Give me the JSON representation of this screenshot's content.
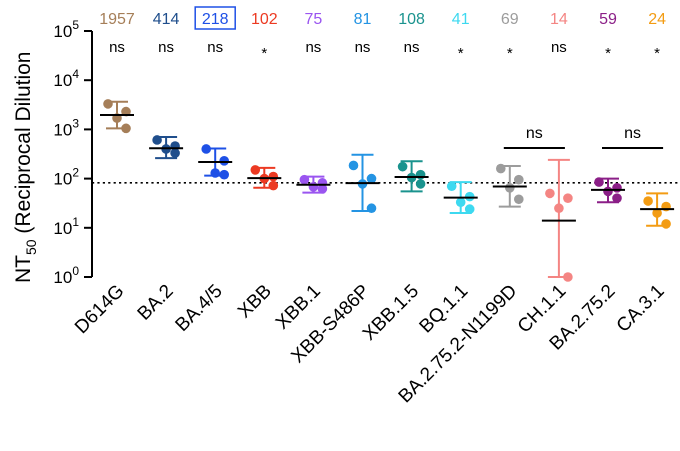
{
  "chart_data": {
    "type": "scatter",
    "ylabel": "NT",
    "ylabel_sub": "50",
    "ylabel_suffix": " (Reciprocal Dilution",
    "yscale": "log",
    "ylim": [
      1,
      100000
    ],
    "yticks": [
      {
        "value": 1,
        "base": "10",
        "exp": "0"
      },
      {
        "value": 10,
        "base": "10",
        "exp": "1"
      },
      {
        "value": 100,
        "base": "10",
        "exp": "2"
      },
      {
        "value": 1000,
        "base": "10",
        "exp": "3"
      },
      {
        "value": 10000,
        "base": "10",
        "exp": "4"
      },
      {
        "value": 100000,
        "base": "10",
        "exp": "5"
      }
    ],
    "reference_line": 82,
    "groups": [
      {
        "name": "D614G",
        "color": "#a57e58",
        "gmt": "1957",
        "boxed": false,
        "sig": "ns",
        "median": 1957,
        "err": [
          1050,
          3650
        ],
        "points": [
          3300,
          2300,
          1700,
          1050
        ]
      },
      {
        "name": "BA.2",
        "color": "#1f4e8c",
        "gmt": "414",
        "boxed": false,
        "sig": "ns",
        "median": 414,
        "err": [
          260,
          700
        ],
        "points": [
          610,
          460,
          400,
          330
        ]
      },
      {
        "name": "BA.4/5",
        "color": "#1e50e6",
        "gmt": "218",
        "boxed": true,
        "sig": "ns",
        "median": 218,
        "err": [
          115,
          410
        ],
        "points": [
          400,
          230,
          130,
          120
        ]
      },
      {
        "name": "XBB",
        "color": "#ec3a22",
        "gmt": "102",
        "boxed": false,
        "sig": "*",
        "median": 102,
        "err": [
          65,
          165
        ],
        "points": [
          150,
          110,
          100,
          72
        ]
      },
      {
        "name": "XBB.1",
        "color": "#9a55f0",
        "gmt": "75",
        "boxed": false,
        "sig": "ns",
        "median": 75,
        "err": [
          52,
          110
        ],
        "points": [
          95,
          82,
          68,
          62
        ]
      },
      {
        "name": "XBB-S486P",
        "color": "#2494e3",
        "gmt": "81",
        "boxed": false,
        "sig": "ns",
        "median": 81,
        "err": [
          22,
          305
        ],
        "points": [
          185,
          100,
          78,
          25
        ]
      },
      {
        "name": "XBB.1.5",
        "color": "#1a938e",
        "gmt": "108",
        "boxed": false,
        "sig": "ns",
        "median": 108,
        "err": [
          55,
          225
        ],
        "points": [
          175,
          120,
          105,
          78
        ]
      },
      {
        "name": "BQ.1.1",
        "color": "#3dd9f0",
        "gmt": "41",
        "boxed": false,
        "sig": "*",
        "median": 41,
        "err": [
          20,
          85
        ],
        "points": [
          70,
          43,
          33,
          24
        ]
      },
      {
        "name": "BA.2.75.2-N1199D",
        "color": "#9c9c9c",
        "gmt": "69",
        "boxed": false,
        "sig": "*",
        "median": 69,
        "err": [
          27,
          180
        ],
        "points": [
          160,
          95,
          65,
          38
        ]
      },
      {
        "name": "CH.1.1",
        "color": "#f48583",
        "gmt": "14",
        "boxed": false,
        "sig": "ns",
        "median": 14,
        "err": [
          1,
          240
        ],
        "points": [
          50,
          40,
          25,
          1
        ]
      },
      {
        "name": "BA.2.75.2",
        "color": "#8b1f87",
        "gmt": "59",
        "boxed": false,
        "sig": "*",
        "median": 59,
        "err": [
          33,
          100
        ],
        "points": [
          85,
          65,
          55,
          40
        ]
      },
      {
        "name": "CA.3.1",
        "color": "#f39c13",
        "gmt": "24",
        "boxed": false,
        "sig": "*",
        "median": 24,
        "err": [
          11,
          50
        ],
        "points": [
          35,
          27,
          20,
          12
        ]
      }
    ],
    "comparisons": [
      {
        "from": "BA.2.75.2-N1199D",
        "to": "CH.1.1",
        "label": "ns"
      },
      {
        "from": "BA.2.75.2",
        "to": "CA.3.1",
        "label": "ns"
      }
    ]
  }
}
